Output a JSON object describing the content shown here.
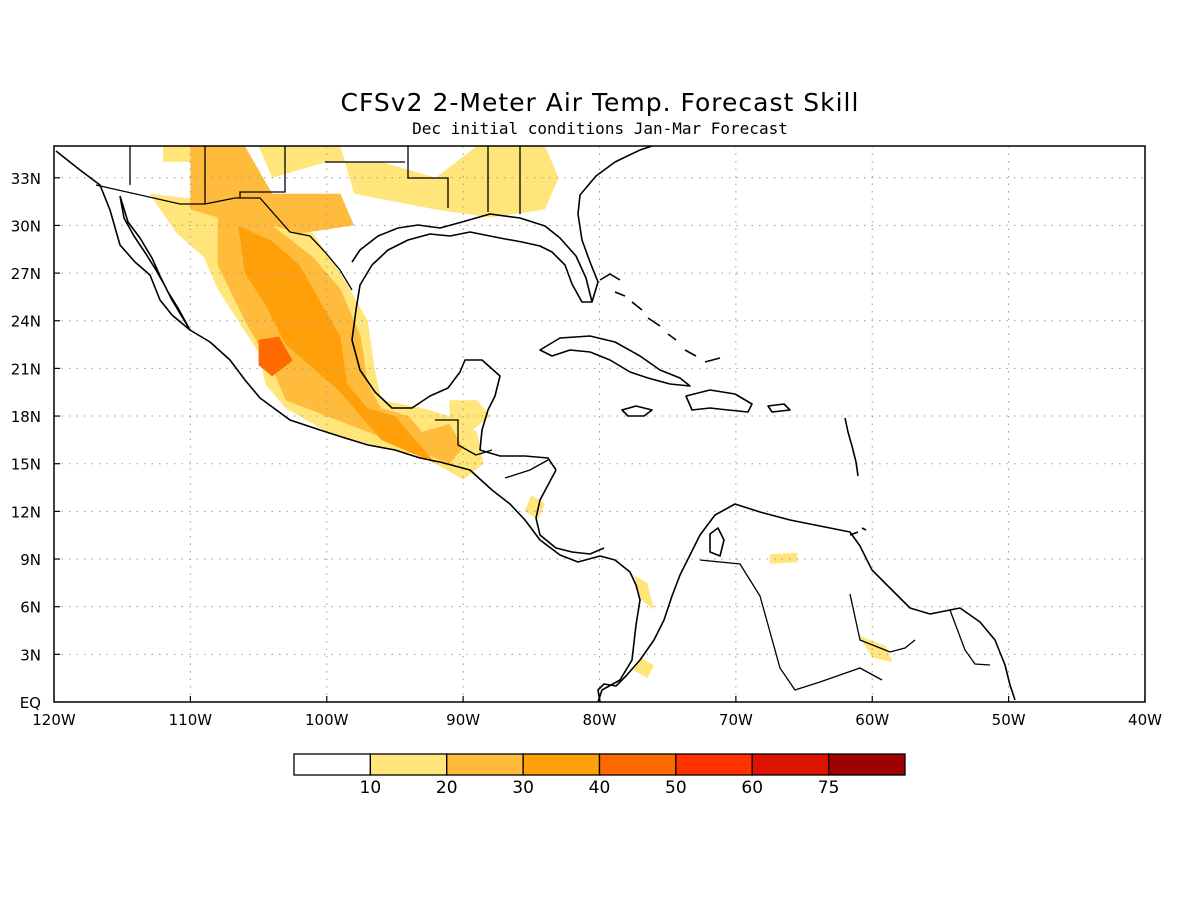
{
  "title": "CFSv2 2-Meter Air Temp. Forecast Skill",
  "subtitle": "Dec initial conditions  Jan-Mar Forecast",
  "map": {
    "lon_range": [
      -120,
      -40
    ],
    "lat_range": [
      0,
      35
    ],
    "x_ticks": [
      {
        "lon": -120,
        "label": "120W"
      },
      {
        "lon": -110,
        "label": "110W"
      },
      {
        "lon": -100,
        "label": "100W"
      },
      {
        "lon": -90,
        "label": "90W"
      },
      {
        "lon": -80,
        "label": "80W"
      },
      {
        "lon": -70,
        "label": "70W"
      },
      {
        "lon": -60,
        "label": "60W"
      },
      {
        "lon": -50,
        "label": "50W"
      },
      {
        "lon": -40,
        "label": "40W"
      }
    ],
    "y_ticks": [
      {
        "lat": 0,
        "label": "EQ"
      },
      {
        "lat": 3,
        "label": "3N"
      },
      {
        "lat": 6,
        "label": "6N"
      },
      {
        "lat": 9,
        "label": "9N"
      },
      {
        "lat": 12,
        "label": "12N"
      },
      {
        "lat": 15,
        "label": "15N"
      },
      {
        "lat": 18,
        "label": "18N"
      },
      {
        "lat": 21,
        "label": "21N"
      },
      {
        "lat": 24,
        "label": "24N"
      },
      {
        "lat": 27,
        "label": "27N"
      },
      {
        "lat": 30,
        "label": "30N"
      },
      {
        "lat": 33,
        "label": "33N"
      }
    ],
    "grid": true
  },
  "colorbar": {
    "levels": [
      10,
      20,
      30,
      40,
      50,
      60,
      75
    ],
    "labels": [
      "10",
      "20",
      "30",
      "40",
      "50",
      "60",
      "75"
    ],
    "colors": [
      "#ffffff",
      "#ffe57a",
      "#ffbb3c",
      "#ffa00a",
      "#ff6a00",
      "#ff3200",
      "#dc1400",
      "#a00000"
    ]
  },
  "skill_regions": [
    {
      "level": 1,
      "points": [
        [
          -117,
          35
        ],
        [
          -112,
          35
        ],
        [
          -112,
          34
        ],
        [
          -108,
          34
        ],
        [
          -107,
          35
        ],
        [
          -117,
          35
        ]
      ]
    },
    {
      "level": 1,
      "points": [
        [
          -105,
          35
        ],
        [
          -99,
          35
        ],
        [
          -98,
          32
        ],
        [
          -92,
          31
        ],
        [
          -88,
          30.5
        ],
        [
          -84,
          31
        ],
        [
          -83,
          33
        ],
        [
          -84,
          35
        ],
        [
          -89,
          35
        ],
        [
          -92,
          33
        ],
        [
          -96,
          34
        ],
        [
          -100,
          34
        ],
        [
          -104,
          33
        ],
        [
          -105,
          35
        ]
      ]
    },
    {
      "level": 1,
      "points": [
        [
          -113,
          32
        ],
        [
          -108,
          31.5
        ],
        [
          -104,
          31
        ],
        [
          -101,
          29.5
        ],
        [
          -99,
          27
        ],
        [
          -97,
          24
        ],
        [
          -96.5,
          21
        ],
        [
          -96,
          19
        ],
        [
          -93,
          18.5
        ],
        [
          -91,
          18
        ],
        [
          -89,
          17
        ],
        [
          -88.5,
          15
        ],
        [
          -90,
          14
        ],
        [
          -93,
          15.5
        ],
        [
          -96,
          16
        ],
        [
          -100,
          17
        ],
        [
          -103,
          18.5
        ],
        [
          -104.5,
          20
        ],
        [
          -105,
          22
        ],
        [
          -106.5,
          24
        ],
        [
          -108,
          26
        ],
        [
          -109,
          28
        ],
        [
          -111,
          29.5
        ],
        [
          -113,
          32
        ]
      ]
    },
    {
      "level": 1,
      "points": [
        [
          -91,
          19
        ],
        [
          -89,
          19
        ],
        [
          -88,
          18
        ],
        [
          -89.5,
          17
        ],
        [
          -91,
          18
        ]
      ]
    },
    {
      "level": 1,
      "points": [
        [
          -85,
          13
        ],
        [
          -84,
          12.5
        ],
        [
          -84.5,
          11.5
        ],
        [
          -85.5,
          12
        ]
      ]
    },
    {
      "level": 1,
      "points": [
        [
          -77.5,
          8
        ],
        [
          -76.5,
          7.5
        ],
        [
          -76,
          5.8
        ],
        [
          -77,
          6.5
        ]
      ]
    },
    {
      "level": 1,
      "points": [
        [
          -77,
          2.8
        ],
        [
          -76,
          2.3
        ],
        [
          -76.5,
          1.5
        ],
        [
          -77.5,
          2
        ]
      ]
    },
    {
      "level": 1,
      "points": [
        [
          -67.5,
          9.3
        ],
        [
          -65.5,
          9.4
        ],
        [
          -65.5,
          8.8
        ],
        [
          -67.5,
          8.7
        ]
      ]
    },
    {
      "level": 1,
      "points": [
        [
          -61,
          4.2
        ],
        [
          -59,
          3.5
        ],
        [
          -58.5,
          2.5
        ],
        [
          -60,
          2.8
        ]
      ]
    },
    {
      "level": 2,
      "points": [
        [
          -110,
          35
        ],
        [
          -106,
          35
        ],
        [
          -104,
          32
        ],
        [
          -99,
          32
        ],
        [
          -98,
          30
        ],
        [
          -102,
          29.5
        ],
        [
          -104,
          30
        ],
        [
          -108,
          30.5
        ],
        [
          -110,
          31
        ]
      ]
    },
    {
      "level": 2,
      "points": [
        [
          -108,
          31
        ],
        [
          -104,
          30
        ],
        [
          -101,
          28
        ],
        [
          -99,
          26
        ],
        [
          -97.5,
          23
        ],
        [
          -97,
          20
        ],
        [
          -96,
          18.5
        ],
        [
          -94,
          18
        ],
        [
          -93,
          17
        ],
        [
          -91,
          17.5
        ],
        [
          -90,
          16
        ],
        [
          -91,
          15
        ],
        [
          -94,
          16
        ],
        [
          -97,
          17
        ],
        [
          -100,
          18
        ],
        [
          -103,
          19
        ],
        [
          -104,
          21
        ],
        [
          -106,
          24
        ],
        [
          -108,
          27.5
        ],
        [
          -108,
          31
        ]
      ]
    },
    {
      "level": 3,
      "points": [
        [
          -106.5,
          30
        ],
        [
          -104,
          29
        ],
        [
          -102,
          27.5
        ],
        [
          -101,
          26
        ],
        [
          -99,
          23
        ],
        [
          -98.5,
          20
        ],
        [
          -97,
          18.5
        ],
        [
          -95,
          18
        ],
        [
          -94,
          17
        ],
        [
          -93,
          16
        ],
        [
          -92,
          15
        ],
        [
          -96,
          16.5
        ],
        [
          -99,
          19.5
        ],
        [
          -101,
          21
        ],
        [
          -103,
          22.5
        ],
        [
          -104.5,
          25
        ],
        [
          -106,
          27
        ],
        [
          -106.5,
          30
        ]
      ]
    },
    {
      "level": 4,
      "points": [
        [
          -105,
          22.8
        ],
        [
          -103.5,
          23
        ],
        [
          -102.5,
          21.5
        ],
        [
          -104,
          20.5
        ],
        [
          -105,
          21.2
        ]
      ]
    }
  ]
}
